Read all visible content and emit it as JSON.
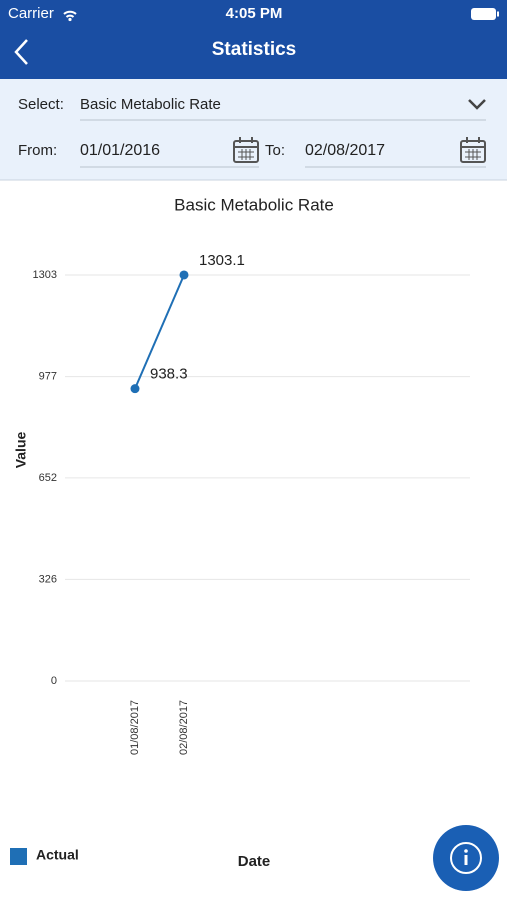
{
  "status_bar": {
    "carrier": "Carrier",
    "time": "4:05 PM"
  },
  "nav": {
    "title": "Statistics"
  },
  "form": {
    "select_label": "Select:",
    "select_value": "Basic Metabolic Rate",
    "from_label": "From:",
    "from_value": "01/01/2016",
    "to_label": "To:",
    "to_value": "02/08/2017"
  },
  "chart_data": {
    "type": "line",
    "title": "Basic Metabolic Rate",
    "y_label": "Value",
    "x_label": "Date",
    "categories": [
      "01/08/2017",
      "02/08/2017"
    ],
    "series": [
      {
        "name": "Actual",
        "color": "#1f6fb5",
        "values": [
          938.3,
          1303.1
        ]
      }
    ],
    "ylim": [
      0,
      1303
    ],
    "yticks": [
      0,
      326,
      652,
      977,
      1303
    ],
    "grid": true,
    "legend": "bottom-left"
  }
}
